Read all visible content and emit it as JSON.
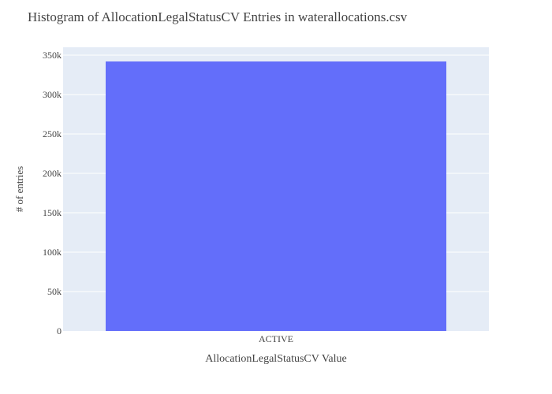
{
  "chart_data": {
    "type": "bar",
    "title": "Histogram of AllocationLegalStatusCV Entries in waterallocations.csv",
    "xlabel": "AllocationLegalStatusCV Value",
    "ylabel": "# of entries",
    "categories": [
      "ACTIVE"
    ],
    "values": [
      342000
    ],
    "ylim": [
      0,
      360000
    ],
    "yticks": [
      0,
      50000,
      100000,
      150000,
      200000,
      250000,
      300000,
      350000
    ],
    "ytick_labels": [
      "0",
      "50k",
      "100k",
      "150k",
      "200k",
      "250k",
      "300k",
      "350k"
    ],
    "grid": true,
    "bar_color": "#636efa",
    "plot_background": "#e5ecf6"
  }
}
